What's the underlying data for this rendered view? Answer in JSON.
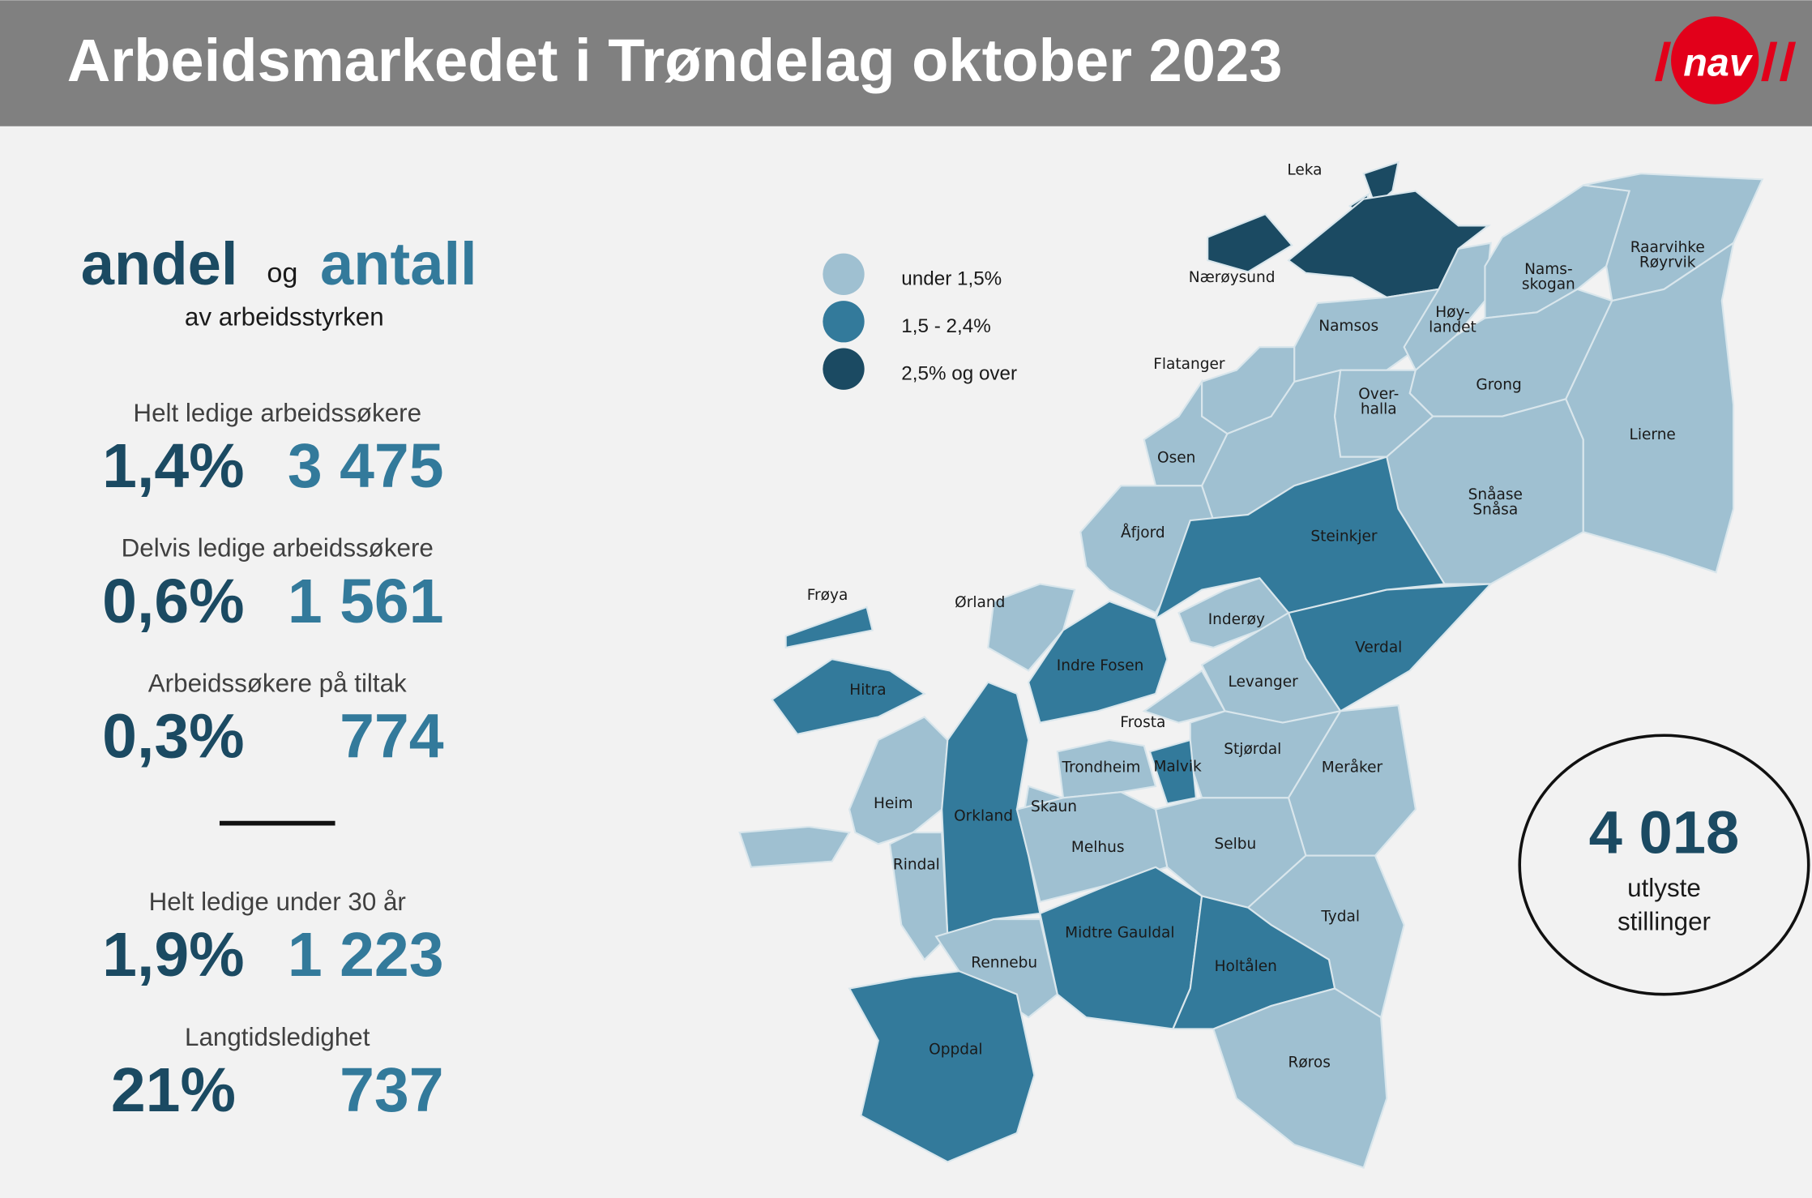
{
  "header": {
    "title": "Arbeidsmarkedet i Trøndelag oktober 2023",
    "logo": "nav"
  },
  "panel": {
    "heading": [
      "andel",
      "og",
      "antall"
    ],
    "subheading": "av arbeidsstyrken",
    "stats": [
      {
        "label": "Helt ledige arbeidssøkere",
        "share": "1,4%",
        "count": "3 475"
      },
      {
        "label": "Delvis ledige arbeidssøkere",
        "share": "0,6%",
        "count": "1 561"
      },
      {
        "label": "Arbeidssøkere på tiltak",
        "share": "0,3%",
        "count": "774"
      },
      {
        "label": "Helt ledige under 30 år",
        "share": "1,9%",
        "count": "1 223"
      },
      {
        "label": "Langtidsledighet",
        "share": "21%",
        "count": "737"
      }
    ]
  },
  "legend": [
    {
      "label": "under 1,5%",
      "color": "#9fc0d1"
    },
    {
      "label": "1,5 - 2,4%",
      "color": "#337a9b"
    },
    {
      "label": "2,5% og over",
      "color": "#1b4a62"
    }
  ],
  "municipalities": [
    {
      "name": [
        "Leka"
      ],
      "level": 2
    },
    {
      "name": [
        "Nærøysund"
      ],
      "level": 2
    },
    {
      "name": [
        "Namsos"
      ],
      "level": 0
    },
    {
      "name": [
        "Høy-",
        "landet"
      ],
      "level": 0
    },
    {
      "name": [
        "Nams-",
        "skogan"
      ],
      "level": 0
    },
    {
      "name": [
        "Raarvihke",
        "Røyrvik"
      ],
      "level": 0
    },
    {
      "name": [
        "Flatanger"
      ],
      "level": 0
    },
    {
      "name": [
        "Over-",
        "halla"
      ],
      "level": 0
    },
    {
      "name": [
        "Grong"
      ],
      "level": 0
    },
    {
      "name": [
        "Lierne"
      ],
      "level": 0
    },
    {
      "name": [
        "Osen"
      ],
      "level": 0
    },
    {
      "name": [
        "Snåase",
        "Snåsa"
      ],
      "level": 0
    },
    {
      "name": [
        "Åfjord"
      ],
      "level": 0
    },
    {
      "name": [
        "Steinkjer"
      ],
      "level": 1
    },
    {
      "name": [
        "Frøya"
      ],
      "level": 1
    },
    {
      "name": [
        "Ørland"
      ],
      "level": 0
    },
    {
      "name": [
        "Inderøy"
      ],
      "level": 0
    },
    {
      "name": [
        "Verdal"
      ],
      "level": 1
    },
    {
      "name": [
        "Indre Fosen"
      ],
      "level": 1
    },
    {
      "name": [
        "Hitra"
      ],
      "level": 1
    },
    {
      "name": [
        "Levanger"
      ],
      "level": 0
    },
    {
      "name": [
        "Frosta"
      ],
      "level": 0
    },
    {
      "name": [
        "Stjørdal"
      ],
      "level": 0
    },
    {
      "name": [
        "Trondheim"
      ],
      "level": 0
    },
    {
      "name": [
        "Malvik"
      ],
      "level": 1
    },
    {
      "name": [
        "Meråker"
      ],
      "level": 0
    },
    {
      "name": [
        "Heim"
      ],
      "level": 0
    },
    {
      "name": [
        "Skaun"
      ],
      "level": 0
    },
    {
      "name": [
        "Orkland"
      ],
      "level": 1
    },
    {
      "name": [
        "Selbu"
      ],
      "level": 0
    },
    {
      "name": [
        "Melhus"
      ],
      "level": 0
    },
    {
      "name": [
        "Rindal"
      ],
      "level": 0
    },
    {
      "name": [
        "Tydal"
      ],
      "level": 0
    },
    {
      "name": [
        "Midtre Gauldal"
      ],
      "level": 1
    },
    {
      "name": [
        "Rennebu"
      ],
      "level": 0
    },
    {
      "name": [
        "Holtålen"
      ],
      "level": 1
    },
    {
      "name": [
        "Oppdal"
      ],
      "level": 1
    },
    {
      "name": [
        "Røros"
      ],
      "level": 0
    }
  ],
  "vacancies": {
    "value": "4 018",
    "label": [
      "utlyste",
      "stillinger"
    ]
  }
}
